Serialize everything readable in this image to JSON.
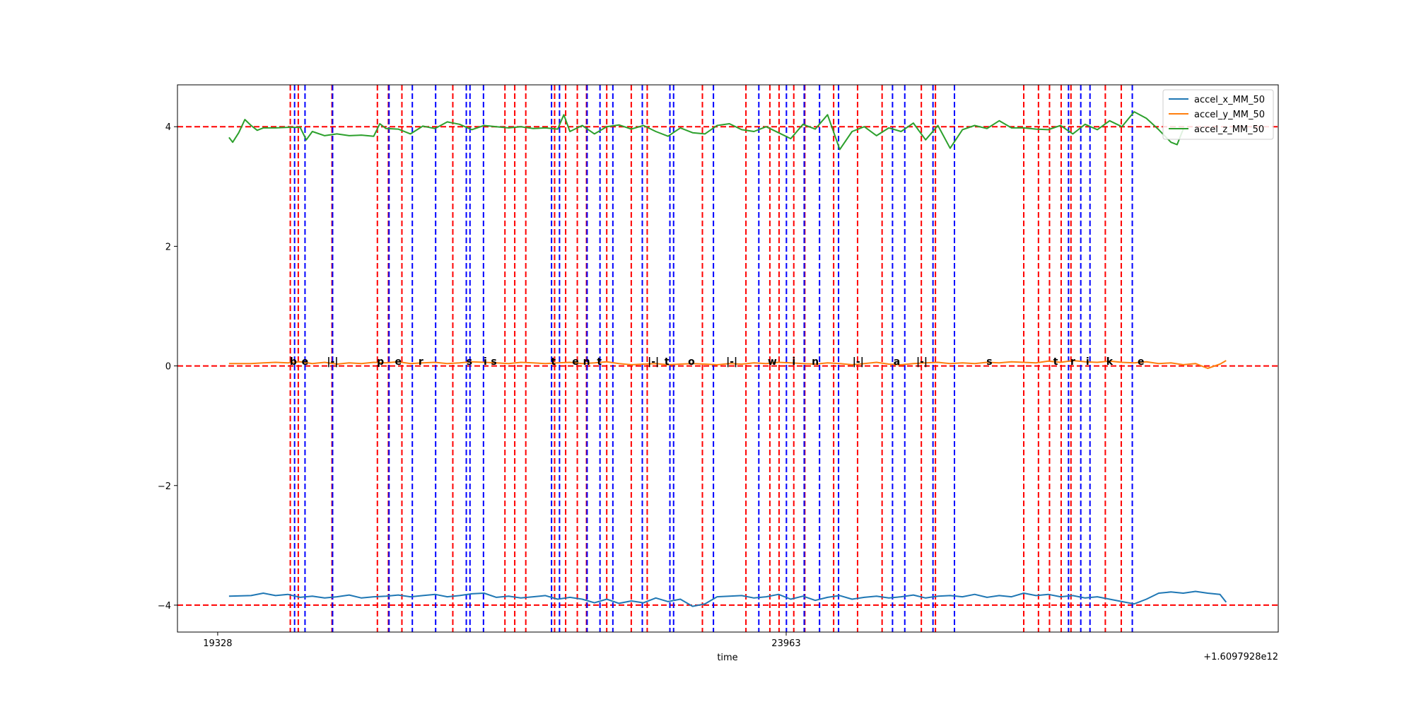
{
  "chart_data": {
    "type": "line",
    "title": "",
    "xlabel": "time",
    "ylabel": "",
    "x_offset_label": "+1.6097928e12",
    "x_ticks": [
      19328,
      23963
    ],
    "x_tick_labels": [
      "19328",
      "23963"
    ],
    "xlim": [
      19000,
      27975
    ],
    "ylim": [
      -4.45,
      4.7
    ],
    "y_ticks": [
      -4,
      -2,
      0,
      2,
      4
    ],
    "y_tick_labels": [
      "−4",
      "−2",
      "0",
      "2",
      "4"
    ],
    "grid": false,
    "legend_position": "upper right",
    "horizontal_reference_lines": [
      {
        "y": 4,
        "color": "#ff0000",
        "style": "dashed"
      },
      {
        "y": 0,
        "color": "#ff0000",
        "style": "dashed"
      },
      {
        "y": -4,
        "color": "#ff0000",
        "style": "dashed"
      }
    ],
    "series": [
      {
        "name": "accel_x_MM_50",
        "color": "#1f77b4",
        "x": [
          19420,
          19600,
          19700,
          19800,
          19900,
          20000,
          20100,
          20200,
          20300,
          20400,
          20500,
          20600,
          20700,
          20800,
          20900,
          21000,
          21100,
          21200,
          21300,
          21400,
          21500,
          21600,
          21700,
          21800,
          21900,
          22000,
          22100,
          22200,
          22300,
          22400,
          22500,
          22600,
          22700,
          22800,
          22900,
          23000,
          23100,
          23200,
          23300,
          23400,
          23500,
          23600,
          23700,
          23800,
          23900,
          24000,
          24100,
          24200,
          24300,
          24400,
          24500,
          24600,
          24700,
          24800,
          24900,
          25000,
          25100,
          25200,
          25300,
          25400,
          25500,
          25600,
          25700,
          25800,
          25900,
          26000,
          26100,
          26200,
          26300,
          26400,
          26500,
          26600,
          26700,
          26800,
          26900,
          27000,
          27100,
          27200,
          27300,
          27400,
          27500,
          27550
        ],
        "values": [
          -3.85,
          -3.84,
          -3.8,
          -3.84,
          -3.82,
          -3.87,
          -3.85,
          -3.88,
          -3.86,
          -3.83,
          -3.88,
          -3.86,
          -3.85,
          -3.83,
          -3.86,
          -3.84,
          -3.82,
          -3.86,
          -3.84,
          -3.81,
          -3.8,
          -3.87,
          -3.85,
          -3.88,
          -3.86,
          -3.84,
          -3.9,
          -3.87,
          -3.9,
          -3.96,
          -3.9,
          -3.97,
          -3.93,
          -3.96,
          -3.88,
          -3.94,
          -3.9,
          -4.02,
          -3.98,
          -3.86,
          -3.85,
          -3.84,
          -3.88,
          -3.86,
          -3.82,
          -3.9,
          -3.85,
          -3.92,
          -3.87,
          -3.84,
          -3.9,
          -3.87,
          -3.85,
          -3.88,
          -3.86,
          -3.83,
          -3.88,
          -3.85,
          -3.84,
          -3.86,
          -3.82,
          -3.87,
          -3.84,
          -3.86,
          -3.8,
          -3.84,
          -3.82,
          -3.86,
          -3.84,
          -3.88,
          -3.86,
          -3.9,
          -3.94,
          -3.98,
          -3.9,
          -3.8,
          -3.78,
          -3.8,
          -3.77,
          -3.8,
          -3.82,
          -3.95
        ]
      },
      {
        "name": "accel_y_MM_50",
        "color": "#ff7f0e",
        "x": [
          19420,
          19600,
          19700,
          19800,
          19900,
          20000,
          20100,
          20200,
          20300,
          20400,
          20500,
          20600,
          20700,
          20800,
          20900,
          21000,
          21100,
          21200,
          21300,
          21400,
          21500,
          21600,
          21700,
          21800,
          21900,
          22000,
          22100,
          22200,
          22300,
          22400,
          22500,
          22600,
          22700,
          22800,
          22900,
          23000,
          23100,
          23200,
          23300,
          23400,
          23500,
          23600,
          23700,
          23800,
          23900,
          24000,
          24100,
          24200,
          24300,
          24400,
          24500,
          24600,
          24700,
          24800,
          24900,
          25000,
          25100,
          25200,
          25300,
          25400,
          25500,
          25600,
          25700,
          25800,
          25900,
          26000,
          26100,
          26200,
          26300,
          26400,
          26500,
          26600,
          26700,
          26800,
          26900,
          27000,
          27100,
          27200,
          27300,
          27400,
          27500,
          27550
        ],
        "values": [
          0.04,
          0.04,
          0.05,
          0.06,
          0.05,
          0.07,
          0.04,
          0.06,
          0.03,
          0.05,
          0.04,
          0.06,
          0.05,
          0.07,
          0.04,
          0.05,
          0.06,
          0.04,
          0.05,
          0.07,
          0.06,
          0.05,
          0.04,
          0.06,
          0.05,
          0.04,
          0.05,
          0.06,
          0.04,
          0.05,
          0.07,
          0.04,
          0.02,
          0.03,
          0.04,
          0.02,
          0.03,
          0.04,
          0.03,
          0.02,
          0.04,
          0.03,
          0.05,
          0.04,
          0.06,
          0.05,
          0.04,
          0.03,
          0.05,
          0.04,
          0.02,
          0.04,
          0.06,
          0.03,
          0.02,
          0.04,
          0.05,
          0.06,
          0.04,
          0.05,
          0.04,
          0.06,
          0.05,
          0.07,
          0.06,
          0.05,
          0.08,
          0.06,
          0.09,
          0.07,
          0.06,
          0.08,
          0.06,
          0.05,
          0.07,
          0.04,
          0.05,
          0.02,
          0.04,
          -0.04,
          0.03,
          0.09
        ]
      },
      {
        "name": "accel_z_MM_50",
        "color": "#2ca02c",
        "x": [
          19420,
          19450,
          19500,
          19550,
          19600,
          19650,
          19700,
          19800,
          19900,
          20000,
          20050,
          20100,
          20200,
          20300,
          20400,
          20500,
          20600,
          20650,
          20700,
          20800,
          20900,
          21000,
          21100,
          21200,
          21300,
          21400,
          21500,
          21600,
          21700,
          21800,
          21900,
          22000,
          22100,
          22150,
          22200,
          22300,
          22400,
          22500,
          22600,
          22700,
          22800,
          22900,
          23000,
          23100,
          23200,
          23300,
          23400,
          23500,
          23600,
          23700,
          23800,
          23900,
          24000,
          24100,
          24200,
          24300,
          24400,
          24500,
          24600,
          24700,
          24800,
          24900,
          25000,
          25100,
          25200,
          25300,
          25400,
          25500,
          25600,
          25700,
          25800,
          25900,
          26000,
          26100,
          26200,
          26300,
          26400,
          26500,
          26600,
          26700,
          26800,
          26900,
          27000,
          27100,
          27150,
          27200
        ],
        "values": [
          3.82,
          3.74,
          3.9,
          4.12,
          4.02,
          3.94,
          3.98,
          3.98,
          3.99,
          3.99,
          3.78,
          3.92,
          3.85,
          3.88,
          3.85,
          3.86,
          3.84,
          4.05,
          3.97,
          3.96,
          3.88,
          4.01,
          3.97,
          4.08,
          4.04,
          3.95,
          4.02,
          4.0,
          3.98,
          4.0,
          3.97,
          3.98,
          3.96,
          4.2,
          3.92,
          4.02,
          3.88,
          4.0,
          4.03,
          3.96,
          4.02,
          3.92,
          3.84,
          3.98,
          3.9,
          3.88,
          4.02,
          4.05,
          3.95,
          3.92,
          4.0,
          3.9,
          3.8,
          4.04,
          3.96,
          4.2,
          3.62,
          3.92,
          4.0,
          3.85,
          3.98,
          3.92,
          4.06,
          3.78,
          4.02,
          3.64,
          3.95,
          4.02,
          3.97,
          4.1,
          3.98,
          3.98,
          3.96,
          3.95,
          4.02,
          3.88,
          4.04,
          3.95,
          4.1,
          4.0,
          4.25,
          4.14,
          3.95,
          3.74,
          3.7,
          3.96
        ]
      }
    ],
    "vertical_markers": {
      "red": [
        19920,
        19985,
        20260,
        20630,
        20720,
        20830,
        21245,
        21670,
        21750,
        21840,
        22075,
        22165,
        22260,
        22335,
        22500,
        22700,
        22830,
        23280,
        23635,
        23830,
        23905,
        24025,
        24115,
        24350,
        24545,
        24745,
        25065,
        25180,
        25900,
        26020,
        26110,
        26205,
        26285,
        26565,
        26695
      ],
      "blue": [
        19955,
        20040,
        20265,
        20725,
        20915,
        21105,
        21355,
        21385,
        21495,
        22050,
        22115,
        22340,
        22445,
        22550,
        22790,
        23015,
        23045,
        23370,
        23740,
        23965,
        24110,
        24235,
        24390,
        24830,
        24930,
        25160,
        25335,
        26265,
        26365,
        26440,
        26785
      ]
    },
    "annotations": [
      {
        "x": 19945,
        "y": 0.02,
        "text": "b"
      },
      {
        "x": 20040,
        "y": 0.02,
        "text": "e"
      },
      {
        "x": 20265,
        "y": 0.02,
        "text": "|-|"
      },
      {
        "x": 20655,
        "y": 0.02,
        "text": "p"
      },
      {
        "x": 20800,
        "y": 0.02,
        "text": "e"
      },
      {
        "x": 20985,
        "y": 0.02,
        "text": "r"
      },
      {
        "x": 21380,
        "y": 0.02,
        "text": "s"
      },
      {
        "x": 21510,
        "y": 0.02,
        "text": "i"
      },
      {
        "x": 21580,
        "y": 0.02,
        "text": "s"
      },
      {
        "x": 22065,
        "y": 0.02,
        "text": "t"
      },
      {
        "x": 22245,
        "y": 0.02,
        "text": "e"
      },
      {
        "x": 22335,
        "y": 0.02,
        "text": "n"
      },
      {
        "x": 22440,
        "y": 0.02,
        "text": "t"
      },
      {
        "x": 22880,
        "y": 0.02,
        "text": "|-|"
      },
      {
        "x": 22990,
        "y": 0.02,
        "text": "t"
      },
      {
        "x": 23190,
        "y": 0.02,
        "text": "o"
      },
      {
        "x": 23520,
        "y": 0.02,
        "text": "|-|"
      },
      {
        "x": 23850,
        "y": 0.02,
        "text": "w"
      },
      {
        "x": 24025,
        "y": 0.02,
        "text": "i"
      },
      {
        "x": 24200,
        "y": 0.02,
        "text": "n"
      },
      {
        "x": 24550,
        "y": 0.02,
        "text": "|-|"
      },
      {
        "x": 24865,
        "y": 0.02,
        "text": "a"
      },
      {
        "x": 25070,
        "y": 0.02,
        "text": "|-|"
      },
      {
        "x": 25620,
        "y": 0.02,
        "text": "s"
      },
      {
        "x": 26160,
        "y": 0.02,
        "text": "t"
      },
      {
        "x": 26300,
        "y": 0.02,
        "text": "r"
      },
      {
        "x": 26420,
        "y": 0.02,
        "text": "i"
      },
      {
        "x": 26600,
        "y": 0.02,
        "text": "k"
      },
      {
        "x": 26855,
        "y": 0.02,
        "text": "e"
      }
    ]
  }
}
